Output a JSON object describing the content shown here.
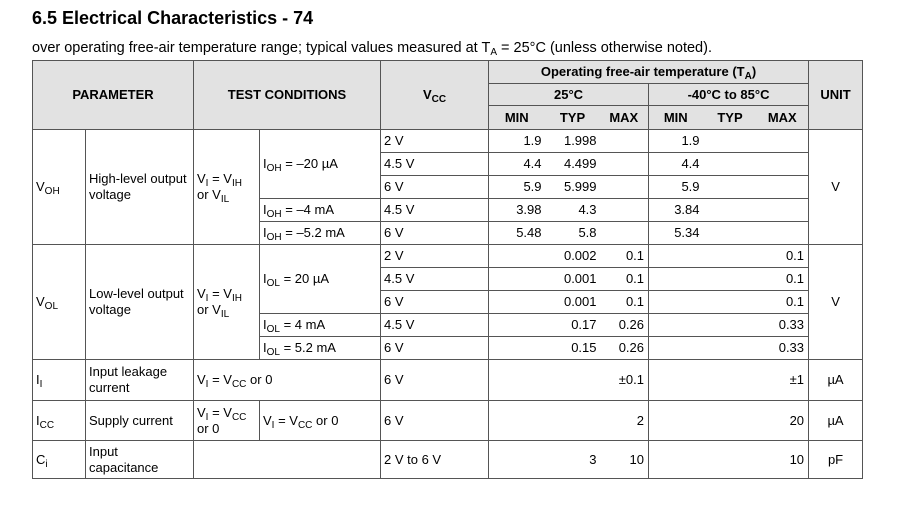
{
  "header": {
    "title": "6.5 Electrical Characteristics - 74",
    "note": [
      "over operating free-air temperature range; typical values measured at T",
      {
        "sub": "A"
      },
      " = 25°C (unless otherwise noted)."
    ]
  },
  "table": {
    "head": {
      "parameter": "PARAMETER",
      "conditions": "TEST CONDITIONS",
      "vcc": [
        "V",
        {
          "sub": "CC"
        }
      ],
      "temp": [
        "Operating free-air temperature (T",
        {
          "sub": "A"
        },
        ")"
      ],
      "t25": "25°C",
      "tfull": "-40°C to 85°C",
      "limits": [
        "MIN",
        "TYP",
        "MAX",
        "MIN",
        "TYP",
        "MAX"
      ],
      "unit": "UNIT"
    },
    "voh": {
      "symbol": [
        "V",
        {
          "sub": "OH"
        }
      ],
      "description": "High-level output voltage",
      "input": [
        "V",
        {
          "sub": "I"
        },
        " = V",
        {
          "sub": "IH"
        },
        " or V",
        {
          "sub": "IL"
        }
      ],
      "loads": [
        [
          "I",
          {
            "sub": "OH"
          },
          " = –20 µA"
        ],
        [
          "I",
          {
            "sub": "OH"
          },
          " = –4 mA"
        ],
        [
          "I",
          {
            "sub": "OH"
          },
          " = –5.2 mA"
        ]
      ],
      "rows": [
        {
          "vcc": "2 V",
          "min25": "1.9",
          "typ25": "1.998",
          "minFull": "1.9"
        },
        {
          "vcc": "4.5 V",
          "min25": "4.4",
          "typ25": "4.499",
          "minFull": "4.4"
        },
        {
          "vcc": "6 V",
          "min25": "5.9",
          "typ25": "5.999",
          "minFull": "5.9"
        },
        {
          "vcc": "4.5 V",
          "min25": "3.98",
          "typ25": "4.3",
          "minFull": "3.84"
        },
        {
          "vcc": "6 V",
          "min25": "5.48",
          "typ25": "5.8",
          "minFull": "5.34"
        }
      ],
      "unit": "V"
    },
    "vol": {
      "symbol": [
        "V",
        {
          "sub": "OL"
        }
      ],
      "description": "Low-level output voltage",
      "input": [
        "V",
        {
          "sub": "I"
        },
        " = V",
        {
          "sub": "IH"
        },
        " or V",
        {
          "sub": "IL"
        }
      ],
      "loads": [
        [
          "I",
          {
            "sub": "OL"
          },
          " = 20 µA"
        ],
        [
          "I",
          {
            "sub": "OL"
          },
          " = 4 mA"
        ],
        [
          "I",
          {
            "sub": "OL"
          },
          " = 5.2 mA"
        ]
      ],
      "rows": [
        {
          "vcc": "2 V",
          "typ25": "0.002",
          "max25": "0.1",
          "maxFull": "0.1"
        },
        {
          "vcc": "4.5 V",
          "typ25": "0.001",
          "max25": "0.1",
          "maxFull": "0.1"
        },
        {
          "vcc": "6 V",
          "typ25": "0.001",
          "max25": "0.1",
          "maxFull": "0.1"
        },
        {
          "vcc": "4.5 V",
          "typ25": "0.17",
          "max25": "0.26",
          "maxFull": "0.33"
        },
        {
          "vcc": "6 V",
          "typ25": "0.15",
          "max25": "0.26",
          "maxFull": "0.33"
        }
      ],
      "unit": "V"
    },
    "ii": {
      "symbol": [
        "I",
        {
          "sub": "I"
        }
      ],
      "description": "Input leakage current",
      "input": [
        "V",
        {
          "sub": "I"
        },
        " = V",
        {
          "sub": "CC"
        },
        " or 0"
      ],
      "rows": [
        {
          "vcc": "6 V",
          "max25": "±0.1",
          "maxFull": "±1"
        }
      ],
      "unit": "µA"
    },
    "icc": {
      "symbol": [
        "I",
        {
          "sub": "CC"
        }
      ],
      "description": "Supply current",
      "input": [
        "V",
        {
          "sub": "I"
        },
        " = V",
        {
          "sub": "CC"
        },
        " or 0"
      ],
      "load": [
        "V",
        {
          "sub": "I"
        },
        " = V",
        {
          "sub": "CC"
        },
        " or 0"
      ],
      "rows": [
        {
          "vcc": "6 V",
          "max25": "2",
          "maxFull": "20"
        }
      ],
      "unit": "µA"
    },
    "ci": {
      "symbol": [
        "C",
        {
          "sub": "i"
        }
      ],
      "description": "Input capacitance",
      "rows": [
        {
          "vcc": "2 V to 6 V",
          "typ25": "3",
          "max25": "10",
          "maxFull": "10"
        }
      ],
      "unit": "pF"
    }
  }
}
